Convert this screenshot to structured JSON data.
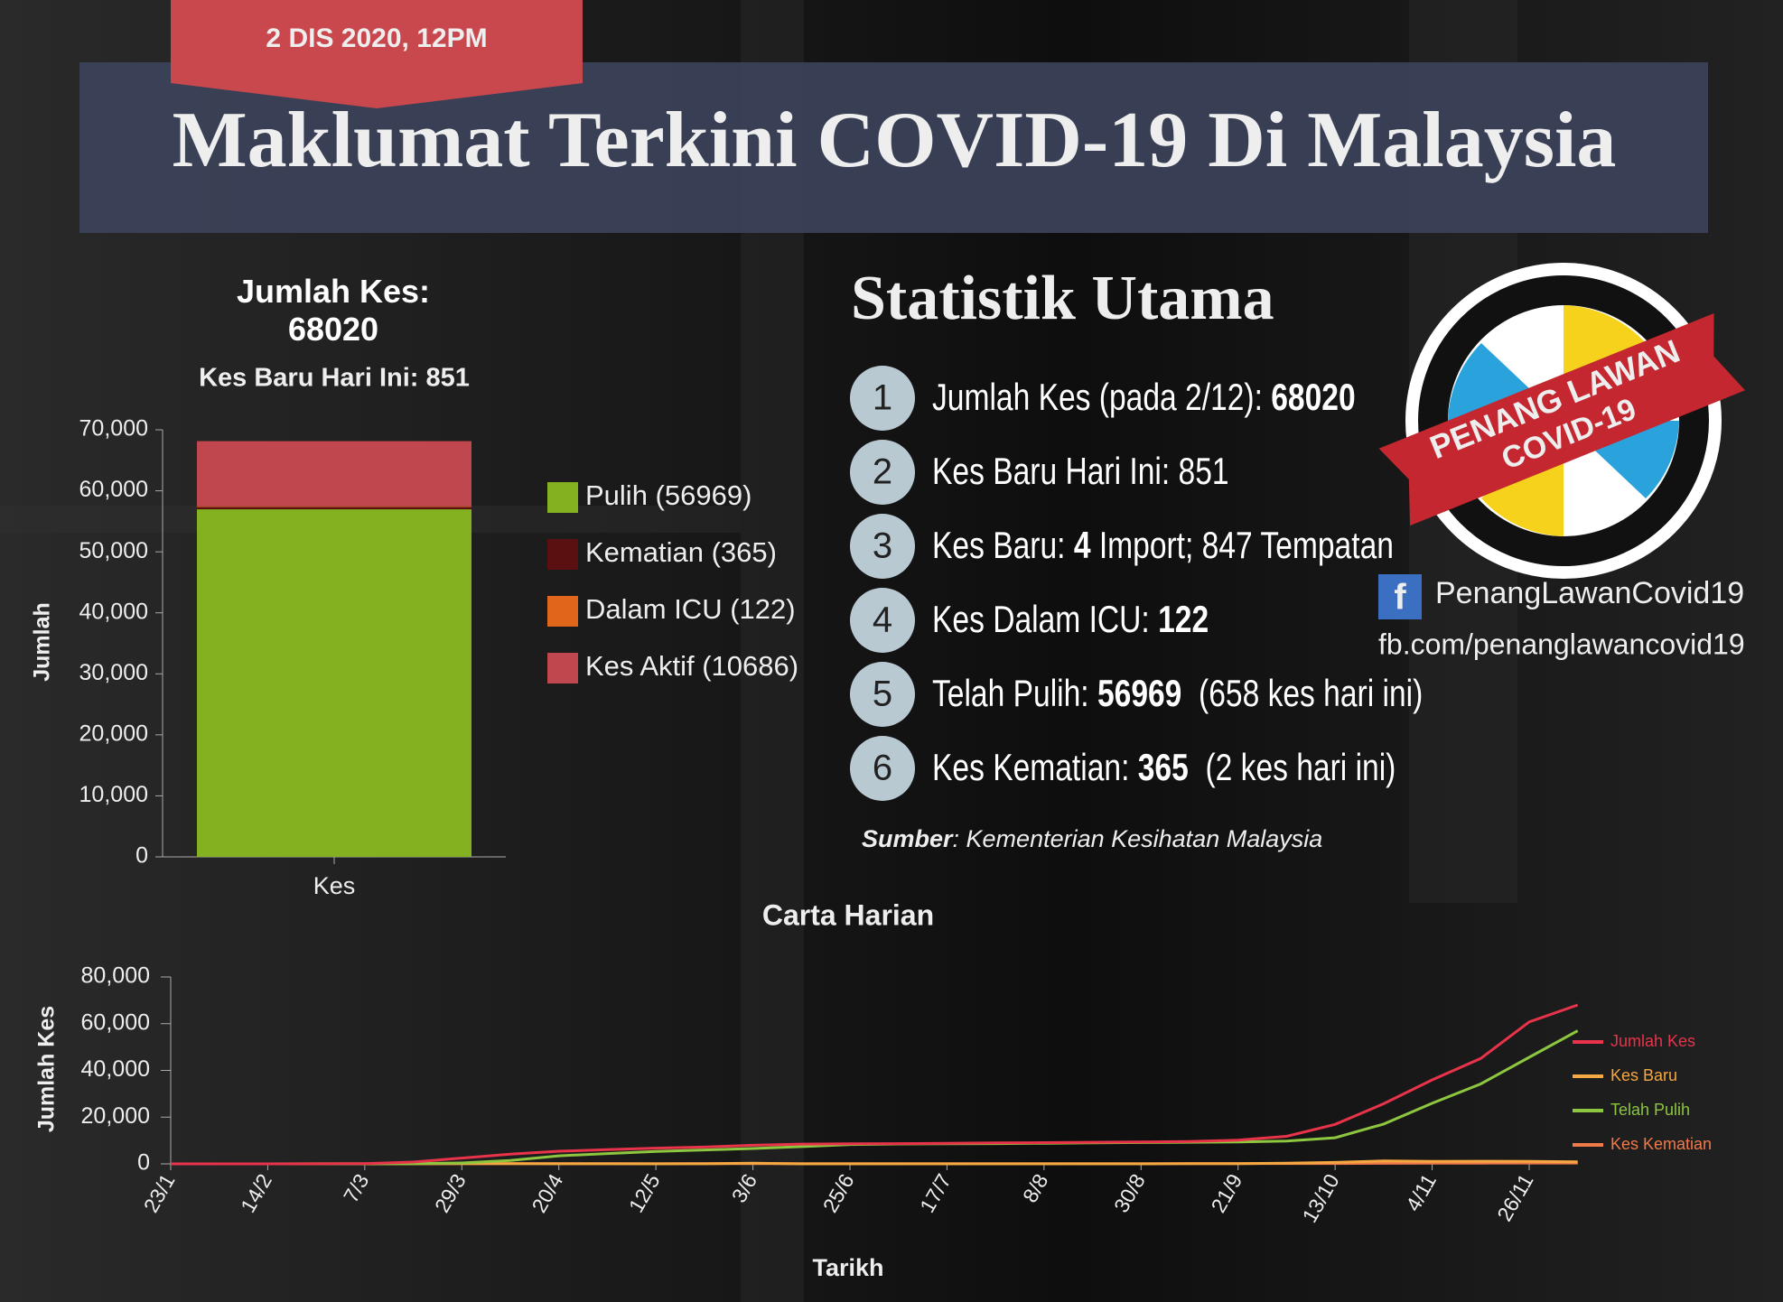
{
  "header": {
    "date": "2 DIS 2020, 12PM",
    "title": "Maklumat Terkini COVID-19 Di Malaysia"
  },
  "chart_data": [
    {
      "type": "bar",
      "stacked": true,
      "title": "Jumlah Kes: 68020",
      "subtitle": "Kes Baru Hari Ini: 851",
      "y_label": "Jumlah",
      "categories": [
        "Kes"
      ],
      "series": [
        {
          "name": "Pulih (56969)",
          "color": "#84b11f",
          "values": [
            56969
          ]
        },
        {
          "name": "Kematian (365)",
          "color": "#5a1010",
          "values": [
            365
          ]
        },
        {
          "name": "Dalam ICU (122)",
          "color": "#e0661c",
          "values": [
            122
          ]
        },
        {
          "name": "Kes Aktif (10686)",
          "color": "#c0474d",
          "values": [
            10686
          ]
        }
      ],
      "ylim": [
        0,
        70000
      ],
      "yticks": [
        0,
        {
          "value": 10000,
          "label": "10,000"
        },
        {
          "value": 20000,
          "label": "20,000"
        },
        {
          "value": 30000,
          "label": "30,000"
        },
        {
          "value": 40000,
          "label": "40,000"
        },
        {
          "value": 50000,
          "label": "50,000"
        },
        {
          "value": 60000,
          "label": "60,000"
        },
        {
          "value": 70000,
          "label": "70,000"
        }
      ],
      "grid": false,
      "legend": "right"
    },
    {
      "type": "line",
      "title": "Carta Harian",
      "x_label": "Tarikh",
      "y_label": "Jumlah Kes",
      "categories": [
        "23/1",
        null,
        "14/2",
        null,
        "7/3",
        null,
        "29/3",
        null,
        "20/4",
        null,
        "12/5",
        null,
        "3/6",
        null,
        "25/6",
        null,
        "17/7",
        null,
        "8/8",
        null,
        "30/8",
        null,
        "21/9",
        null,
        "13/10",
        null,
        "4/11",
        null,
        "26/11",
        null
      ],
      "series": [
        {
          "name": "Jumlah Kes",
          "color": "#e8334a",
          "values": [
            0,
            8,
            19,
            22,
            99,
            790,
            2470,
            4119,
            5425,
            6071,
            6726,
            7185,
            7970,
            8453,
            8596,
            8674,
            8779,
            8956,
            9063,
            9235,
            9340,
            9583,
            10147,
            11771,
            16880,
            25742,
            35944,
            45095,
            60752,
            68020
          ]
        },
        {
          "name": "Kes Baru",
          "color": "#f5a742",
          "values": [
            0,
            0,
            0,
            0,
            10,
            117,
            150,
            109,
            36,
            55,
            16,
            31,
            277,
            19,
            7,
            1,
            15,
            2,
            4,
            10,
            14,
            62,
            82,
            260,
            629,
            1228,
            1032,
            1109,
            1071,
            851
          ]
        },
        {
          "name": "Telah Pulih",
          "color": "#8dc63f",
          "values": [
            0,
            0,
            15,
            22,
            24,
            60,
            388,
            1487,
            3452,
            4413,
            5281,
            5939,
            6559,
            7371,
            8264,
            8490,
            8567,
            8674,
            8809,
            8985,
            9126,
            9220,
            9402,
            9777,
            11168,
            17040,
            25938,
            34195,
            45596,
            56969
          ]
        },
        {
          "name": "Kes Kematian",
          "color": "#f07a4a",
          "values": [
            0,
            0,
            0,
            0,
            0,
            2,
            34,
            65,
            89,
            103,
            111,
            115,
            114,
            121,
            121,
            121,
            122,
            125,
            125,
            125,
            128,
            128,
            130,
            136,
            157,
            214,
            260,
            317,
            355,
            365
          ]
        }
      ],
      "ylim": [
        0,
        80000
      ],
      "yticks": [
        0,
        {
          "value": 20000,
          "label": "20,000"
        },
        {
          "value": 40000,
          "label": "40,000"
        },
        {
          "value": 60000,
          "label": "60,000"
        },
        {
          "value": 80000,
          "label": "80,000"
        }
      ],
      "grid": false,
      "legend": "right"
    }
  ],
  "stats": {
    "title": "Statistik Utama",
    "items": [
      {
        "number": "1",
        "parts": [
          {
            "text": "Jumlah Kes (pada 2/12): ",
            "bold": false
          },
          {
            "text": "68020",
            "bold": true
          }
        ]
      },
      {
        "number": "2",
        "parts": [
          {
            "text": "Kes Baru Hari Ini: 851",
            "bold": false
          }
        ]
      },
      {
        "number": "3",
        "parts": [
          {
            "text": "Kes Baru: ",
            "bold": false
          },
          {
            "text": "4",
            "bold": true
          },
          {
            "text": " Import; 847 Tempatan",
            "bold": false
          }
        ]
      },
      {
        "number": "4",
        "parts": [
          {
            "text": "Kes Dalam ICU: ",
            "bold": false
          },
          {
            "text": "122",
            "bold": true
          }
        ]
      },
      {
        "number": "5",
        "parts": [
          {
            "text": "Telah Pulih: ",
            "bold": false
          },
          {
            "text": "56969",
            "bold": true
          },
          {
            "text": "  (658 kes hari ini)",
            "bold": false
          }
        ]
      },
      {
        "number": "6",
        "parts": [
          {
            "text": "Kes Kematian: ",
            "bold": false
          },
          {
            "text": "365",
            "bold": true
          },
          {
            "text": "  (2 kes hari ini)",
            "bold": false
          }
        ]
      }
    ]
  },
  "logo": {
    "line1": "PENANG LAWAN",
    "line2": "COVID-19"
  },
  "facebook": {
    "icon": "f",
    "name": "PenangLawanCovid19",
    "url": "fb.com/penanglawancovid19"
  },
  "source": {
    "label": "Sumber",
    "text": ": Kementerian Kesihatan Malaysia"
  }
}
